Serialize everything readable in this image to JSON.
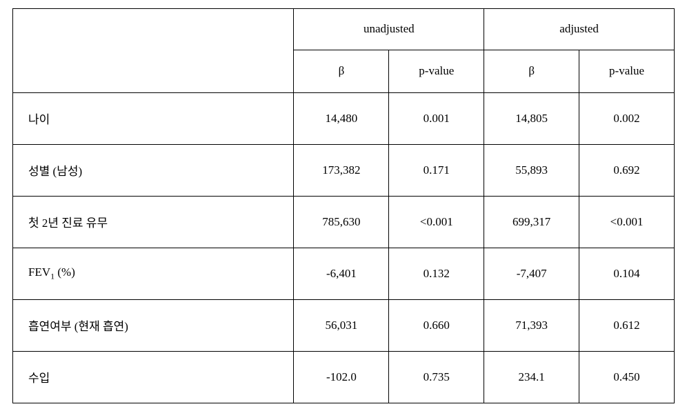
{
  "table": {
    "header_groups": [
      "unadjusted",
      "adjusted"
    ],
    "sub_headers": [
      "β",
      "p-value",
      "β",
      "p-value"
    ],
    "rows": [
      {
        "label": "나이",
        "values": [
          "14,480",
          "0.001",
          "14,805",
          "0.002"
        ]
      },
      {
        "label": "성별 (남성)",
        "values": [
          "173,382",
          "0.171",
          "55,893",
          "0.692"
        ]
      },
      {
        "label": "첫 2년 진료 유무",
        "values": [
          "785,630",
          "<0.001",
          "699,317",
          "<0.001"
        ]
      },
      {
        "label_html": "FEV<sub>1</sub> (%)",
        "values": [
          "-6,401",
          "0.132",
          "-7,407",
          "0.104"
        ]
      },
      {
        "label": "흡연여부 (현재 흡연)",
        "values": [
          "56,031",
          "0.660",
          "71,393",
          "0.612"
        ]
      },
      {
        "label": "수입",
        "values": [
          "-102.0",
          "0.735",
          "234.1",
          "0.450"
        ]
      }
    ],
    "colors": {
      "background": "#ffffff",
      "border": "#000000",
      "text": "#000000"
    },
    "font_size": 17,
    "columns": {
      "label_width": 408,
      "value_width": 138
    }
  }
}
